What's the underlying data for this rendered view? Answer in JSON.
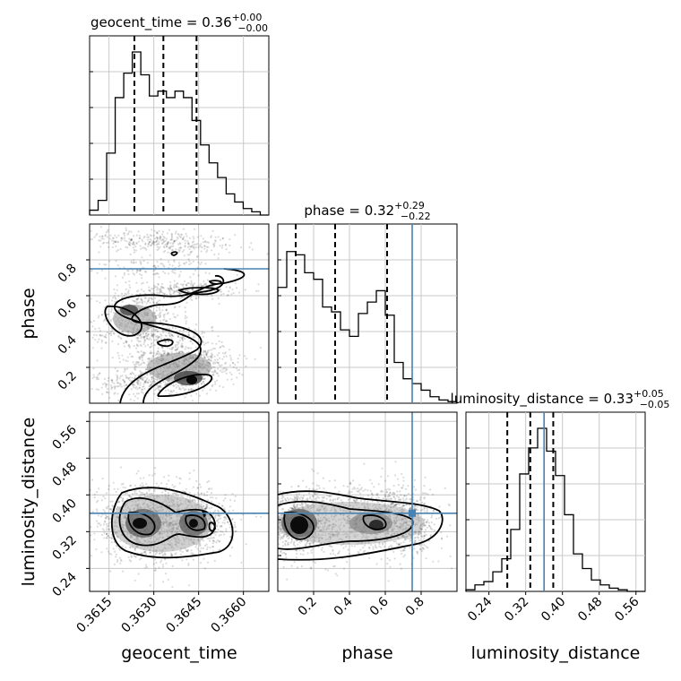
{
  "chart_data": {
    "type": "corner",
    "parameters": [
      "geocent_time",
      "phase",
      "luminosity_distance"
    ],
    "titles": [
      {
        "param": "geocent_time",
        "median": "0.36",
        "plus": "+0.00",
        "minus": "−0.00"
      },
      {
        "param": "phase",
        "median": "0.32",
        "plus": "+0.29",
        "minus": "−0.22"
      },
      {
        "param": "luminosity_distance",
        "median": "0.33",
        "plus": "+0.05",
        "minus": "−0.05"
      }
    ],
    "ranges": {
      "geocent_time": [
        0.36085,
        0.36685
      ],
      "phase": [
        0.0,
        1.0
      ],
      "luminosity_distance": [
        0.19,
        0.58
      ]
    },
    "ticks": {
      "geocent_time": [
        0.3615,
        0.363,
        0.3645,
        0.366
      ],
      "phase": [
        0.2,
        0.4,
        0.6,
        0.8
      ],
      "luminosity_distance": [
        0.24,
        0.32,
        0.4,
        0.48,
        0.56
      ]
    },
    "tick_labels": {
      "geocent_time": [
        "0.3615",
        "0.3630",
        "0.3645",
        "0.3660"
      ],
      "phase": [
        "0.2",
        "0.4",
        "0.6",
        "0.8"
      ],
      "luminosity_distance": [
        "0.24",
        "0.32",
        "0.40",
        "0.48",
        "0.56"
      ]
    },
    "quantile_lines": {
      "geocent_time": [
        0.36235,
        0.36332,
        0.36443
      ],
      "phase": [
        0.1,
        0.32,
        0.61
      ],
      "luminosity_distance": [
        0.28,
        0.33,
        0.38
      ]
    },
    "truths": {
      "phase": 0.75,
      "luminosity_distance": 0.36
    },
    "hist_1d": {
      "geocent_time": [
        0.03,
        0.09,
        0.38,
        0.72,
        0.87,
        1.0,
        0.86,
        0.73,
        0.76,
        0.72,
        0.76,
        0.72,
        0.58,
        0.43,
        0.32,
        0.23,
        0.13,
        0.08,
        0.04,
        0.02,
        0.0
      ],
      "phase": [
        0.71,
        0.93,
        0.91,
        0.8,
        0.76,
        0.59,
        0.56,
        0.45,
        0.41,
        0.55,
        0.62,
        0.69,
        0.54,
        0.25,
        0.15,
        0.12,
        0.08,
        0.04,
        0.02,
        0.01
      ],
      "luminosity_distance": [
        0.01,
        0.04,
        0.06,
        0.12,
        0.2,
        0.38,
        0.72,
        0.88,
        1.0,
        0.86,
        0.71,
        0.47,
        0.23,
        0.14,
        0.07,
        0.04,
        0.02,
        0.01,
        0.0,
        0.0
      ]
    },
    "grid": true,
    "truth_color": "#4682b4",
    "hist_color": "#000000"
  }
}
